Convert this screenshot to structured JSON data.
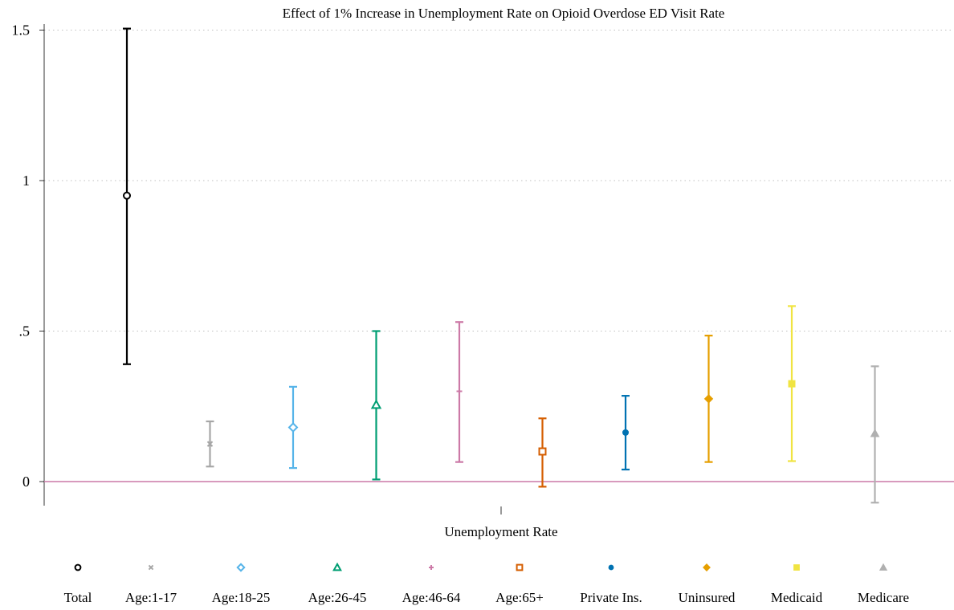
{
  "chart_data": {
    "type": "scatter",
    "title": "Effect of 1% Increase in Unemployment Rate on Opioid Overdose ED Visit Rate",
    "xlabel": "Unemployment Rate",
    "ylabel": "",
    "ylim": [
      -0.08,
      1.52
    ],
    "yticks": [
      {
        "value": 1.5,
        "label": "1.5"
      },
      {
        "value": 1,
        "label": "1"
      },
      {
        "value": 0.5,
        "label": ".5"
      },
      {
        "value": 0,
        "label": "0"
      }
    ],
    "grid": true,
    "reference_line": 0,
    "legend_position": "bottom",
    "series": [
      {
        "name": "Total",
        "estimate": 0.95,
        "ci": [
          0.39,
          1.505
        ],
        "color": "#000000",
        "marker": "circle-hollow"
      },
      {
        "name": "Age:1-17",
        "estimate": 0.125,
        "ci": [
          0.05,
          0.2
        ],
        "color": "#a6a6a6",
        "marker": "x"
      },
      {
        "name": "Age:18-25",
        "estimate": 0.18,
        "ci": [
          0.045,
          0.315
        ],
        "color": "#56b4e9",
        "marker": "diamond-hollow"
      },
      {
        "name": "Age:26-45",
        "estimate": 0.255,
        "ci": [
          0.007,
          0.5
        ],
        "color": "#009e73",
        "marker": "triangle-hollow"
      },
      {
        "name": "Age:46-64",
        "estimate": 0.3,
        "ci": [
          0.065,
          0.53
        ],
        "color": "#cc79a7",
        "marker": "plus"
      },
      {
        "name": "Age:65+",
        "estimate": 0.1,
        "ci": [
          -0.017,
          0.21
        ],
        "color": "#d55e00",
        "marker": "square-hollow"
      },
      {
        "name": "Private Ins.",
        "estimate": 0.163,
        "ci": [
          0.04,
          0.285
        ],
        "color": "#0072b2",
        "marker": "circle"
      },
      {
        "name": "Uninsured",
        "estimate": 0.275,
        "ci": [
          0.065,
          0.485
        ],
        "color": "#e69f00",
        "marker": "diamond"
      },
      {
        "name": "Medicaid",
        "estimate": 0.325,
        "ci": [
          0.068,
          0.583
        ],
        "color": "#f0e442",
        "marker": "square"
      },
      {
        "name": "Medicare",
        "estimate": 0.16,
        "ci": [
          -0.07,
          0.383
        ],
        "color": "#b0b0b0",
        "marker": "triangle"
      }
    ]
  },
  "colors": {
    "zero_line": "#cc79a7",
    "grid": "#bfbfbf",
    "axis": "#000000"
  }
}
